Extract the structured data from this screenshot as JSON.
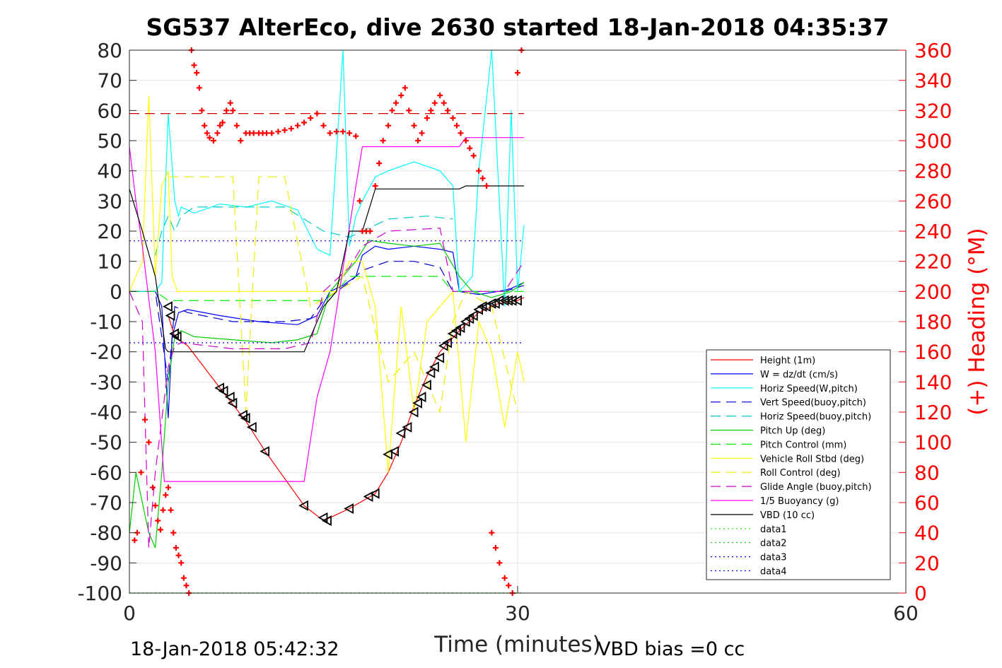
{
  "chart_data": {
    "type": "line",
    "title": "SG537 AlterEco, dive 2630 started 18-Jan-2018 04:35:37",
    "xlabel": "Time (minutes)",
    "ylabel_right": "(+) Heading (°M)",
    "xlim": [
      0,
      60
    ],
    "ylim": [
      -100,
      80
    ],
    "ylim_right": [
      0,
      360
    ],
    "x_ticks": [
      "0",
      "30",
      "60"
    ],
    "y_ticks": [
      "80",
      "70",
      "60",
      "50",
      "40",
      "30",
      "20",
      "10",
      "0",
      "-10",
      "-20",
      "-30",
      "-40",
      "-50",
      "-60",
      "-70",
      "-80",
      "-90",
      "-100"
    ],
    "y_right_ticks": [
      "360",
      "340",
      "320",
      "300",
      "280",
      "260",
      "240",
      "220",
      "200",
      "180",
      "160",
      "140",
      "120",
      "100",
      "80",
      "60",
      "40",
      "20",
      "0"
    ],
    "grid": true,
    "legend_position": "bottom-right",
    "footer_left": "18-Jan-2018 05:42:32",
    "footer_right": "VBD bias =0 cc",
    "series": [
      {
        "name": "Height (1m)",
        "color": "#ff0000",
        "style": "solid",
        "x": [
          3.0,
          3.5,
          4.5,
          7.0,
          9.0,
          10.5,
          13.5,
          15.0,
          15.5,
          17.0,
          19.0,
          20.0,
          21.0,
          22.0,
          23.0,
          24.0,
          25.5,
          27.0,
          28.5,
          30.0,
          30.5
        ],
        "y": [
          -8,
          -15,
          -18,
          -32,
          -43,
          -53,
          -71,
          -76,
          -75,
          -72,
          -67,
          -60,
          -50,
          -38,
          -28,
          -20,
          -13,
          -7,
          -4,
          -3,
          -2
        ]
      },
      {
        "name": "W = dz/dt (cm/s)",
        "color": "#0000ff",
        "style": "solid",
        "x": [
          0,
          2.0,
          2.5,
          3.0,
          3.3,
          3.8,
          4.5,
          7.0,
          10.0,
          13.0,
          14.5,
          15.5,
          16.5,
          17.5,
          18.0,
          19.0,
          20.0,
          22.0,
          24.0,
          25.0,
          25.5,
          27.0,
          28.5,
          29.5,
          30.5
        ],
        "y": [
          0,
          0,
          -5,
          -42,
          -15,
          -7,
          -6,
          -8,
          -10,
          -11,
          -8,
          0,
          2,
          5,
          12,
          15,
          14,
          15,
          14,
          13,
          0,
          -1,
          0,
          1,
          3
        ]
      },
      {
        "name": "Horiz Speed(W,pitch)",
        "color": "#00ffff",
        "style": "solid",
        "x": [
          0,
          2.0,
          2.5,
          3.0,
          3.5,
          3.8,
          4.0,
          5.0,
          7.0,
          9.0,
          11.0,
          13.0,
          14.5,
          15.5,
          16.5,
          17.0,
          17.5,
          18.0,
          19.0,
          20.0,
          22.0,
          24.0,
          25.0,
          25.5,
          26.5,
          27.0,
          28.0,
          29.0,
          29.5,
          30.0,
          30.5
        ],
        "y": [
          0,
          0,
          3,
          59,
          30,
          25,
          28,
          26,
          29,
          28,
          30,
          27,
          14,
          12,
          80,
          15,
          25,
          30,
          38,
          40,
          43,
          40,
          35,
          0,
          5,
          40,
          80,
          -5,
          60,
          0,
          22
        ]
      },
      {
        "name": "Vert Speed(buoy,pitch)",
        "color": "#0000cc",
        "style": "dashed",
        "x": [
          0,
          2.0,
          3.0,
          3.5,
          4.5,
          8.0,
          12.0,
          14.0,
          15.0,
          16.0,
          17.0,
          18.0,
          20.0,
          22.0,
          24.0,
          25.0,
          27.0,
          29.0,
          30.5
        ],
        "y": [
          0,
          0,
          -30,
          -5,
          -7,
          -10,
          -10,
          -9,
          -3,
          0,
          3,
          7,
          10,
          10,
          8,
          0,
          0,
          0,
          2
        ]
      },
      {
        "name": "Horiz Speed(buoy,pitch)",
        "color": "#00cccc",
        "style": "dashed",
        "x": [
          2.0,
          2.5,
          3.0,
          3.5,
          4.0,
          5.0,
          8.0,
          12.0,
          15.0,
          17.0,
          20.0,
          23.0,
          25.0
        ],
        "y": [
          12,
          20,
          25,
          20,
          25,
          28,
          28,
          28,
          20,
          18,
          24,
          25,
          24
        ]
      },
      {
        "name": "Pitch Up (deg)",
        "color": "#00cc00",
        "style": "solid",
        "x": [
          0,
          0.5,
          1.0,
          1.5,
          2.0,
          2.5,
          3.0,
          3.5,
          4.0,
          5.0,
          8.0,
          11.0,
          13.0,
          14.5,
          15.5,
          16.5,
          17.5,
          18.5,
          20.0,
          22.0,
          24.0,
          25.5,
          26.5,
          28.0,
          29.5,
          30.5
        ],
        "y": [
          -80,
          -60,
          -70,
          -80,
          -85,
          -60,
          -30,
          -15,
          -13,
          -15,
          -16,
          -17,
          -16,
          -14,
          0,
          5,
          10,
          17,
          16,
          15,
          16,
          5,
          0,
          -2,
          0,
          3
        ]
      },
      {
        "name": "Pitch Control (mm)",
        "color": "#00ee00",
        "style": "dashed",
        "x": [
          0,
          2.0,
          3.0,
          4.0,
          8.0,
          12.0,
          14.0,
          15.0,
          16.0,
          17.0,
          20.0,
          24.0,
          25.0,
          27.0,
          30.5
        ],
        "y": [
          0,
          0,
          -3,
          -3,
          -3,
          -3,
          -3,
          -3,
          0,
          5,
          5,
          5,
          0,
          0,
          0
        ]
      },
      {
        "name": "Vehicle Roll Stbd (deg)",
        "color": "#ffff00",
        "style": "solid",
        "x": [
          0,
          1.0,
          1.5,
          2.0,
          2.5,
          3.0,
          3.3,
          3.7,
          4.0,
          5.0,
          6.0,
          7.0,
          8.0,
          9.0,
          10.0,
          11.0,
          12.0,
          13.0,
          14.5,
          16.0,
          17.0,
          18.0,
          19.0,
          20.0,
          21.0,
          22.0,
          23.0,
          24.0,
          25.0,
          26.0,
          27.0,
          28.0,
          29.0,
          30.0,
          30.5
        ],
        "y": [
          0,
          10,
          65,
          5,
          35,
          40,
          5,
          0,
          0,
          0,
          0,
          0,
          0,
          0,
          0,
          0,
          0,
          0,
          0,
          0,
          10,
          10,
          -5,
          -60,
          -5,
          -40,
          -10,
          -5,
          0,
          -50,
          -10,
          -20,
          -45,
          -20,
          -30
        ]
      },
      {
        "name": "Roll Control (deg)",
        "color": "#eeee00",
        "style": "dashed",
        "x": [
          3.0,
          4.0,
          6.0,
          8.0,
          9.0,
          10.0,
          12.0,
          14.0,
          16.0,
          18.0,
          20.0,
          22.0,
          24.0,
          25.0,
          26.0,
          28.0,
          30.0
        ],
        "y": [
          38,
          38,
          38,
          38,
          -40,
          38,
          38,
          -5,
          0,
          5,
          -30,
          -20,
          -40,
          -10,
          0,
          -5,
          -40
        ]
      },
      {
        "name": "Glide Angle (buoy,pitch)",
        "color": "#cc00cc",
        "style": "dashed",
        "x": [
          0,
          1.0,
          1.5,
          2.0,
          3.0,
          3.5,
          4.0,
          6.0,
          8.0,
          12.0,
          14.0,
          15.0,
          17.0,
          18.0,
          20.0,
          24.0,
          25.0,
          27.0,
          29.0,
          30.5
        ],
        "y": [
          0,
          -10,
          -85,
          -60,
          -25,
          -18,
          -17,
          -18,
          -19,
          -19,
          -17,
          0,
          8,
          15,
          20,
          21,
          0,
          0,
          0,
          10
        ]
      },
      {
        "name": "1/5 Buoyancy (g)",
        "color": "#ff00ff",
        "style": "solid",
        "x": [
          0,
          0.5,
          1.0,
          2.0,
          2.7,
          3.0,
          8.0,
          13.5,
          14.5,
          15.5,
          17.5,
          18.0,
          25.5,
          26.0,
          30.0,
          30.5
        ],
        "y": [
          48,
          30,
          15,
          -20,
          -63,
          -63,
          -63,
          -63,
          -35,
          -20,
          35,
          48,
          48,
          51,
          51,
          51
        ]
      },
      {
        "name": "VBD (10 cc)",
        "color": "#000000",
        "style": "solid",
        "x": [
          0,
          1.0,
          2.0,
          2.8,
          3.0,
          13.5,
          15.0,
          16.0,
          17.0,
          18.0,
          19.0,
          25.5,
          26.0,
          30.5
        ],
        "y": [
          34,
          20,
          5,
          -19,
          -20,
          -20,
          -5,
          0,
          20,
          20,
          34,
          34,
          35,
          35
        ]
      },
      {
        "name": "data1",
        "color": "#00ee00",
        "style": "dotted",
        "x": [
          0,
          30.5
        ],
        "y": [
          -100,
          -100
        ]
      },
      {
        "name": "data2",
        "color": "#00cc00",
        "style": "dotted",
        "x": [
          0,
          30.5
        ],
        "y": [
          -100,
          -100
        ]
      },
      {
        "name": "data3",
        "color": "#0000ff",
        "style": "dotted",
        "x": [
          0,
          30.5
        ],
        "y": [
          16.8,
          16.8
        ]
      },
      {
        "name": "data4",
        "color": "#0000ff",
        "style": "dotted",
        "x": [
          0,
          30.5
        ],
        "y": [
          -17,
          -17
        ]
      }
    ],
    "heading_reference": {
      "color": "#cc0000",
      "style": "dashed",
      "x": [
        0,
        30.5
      ],
      "heading": 318
    },
    "heading_points": {
      "color": "#ff0000",
      "marker": "+",
      "x": [
        0.4,
        0.6,
        0.9,
        1.2,
        1.5,
        1.8,
        2.0,
        2.2,
        2.4,
        2.6,
        2.8,
        3.0,
        3.2,
        3.4,
        3.6,
        3.8,
        4.0,
        4.2,
        4.4,
        4.6,
        4.8,
        5.0,
        5.2,
        5.4,
        5.6,
        5.8,
        6.0,
        6.2,
        6.5,
        6.8,
        7.0,
        7.2,
        7.5,
        7.8,
        8.0,
        8.3,
        8.6,
        9.0,
        9.3,
        9.6,
        10.0,
        10.3,
        10.6,
        11.0,
        11.5,
        12.0,
        12.5,
        13.0,
        13.5,
        14.0,
        14.5,
        15.0,
        15.5,
        16.0,
        16.5,
        17.0,
        17.5,
        17.8,
        18.0,
        18.3,
        18.6,
        19.0,
        19.3,
        19.6,
        20.0,
        20.3,
        20.6,
        21.0,
        21.3,
        21.6,
        22.0,
        22.3,
        22.6,
        23.0,
        23.3,
        23.6,
        24.0,
        24.3,
        24.6,
        25.0,
        25.3,
        25.6,
        26.0,
        26.3,
        26.6,
        27.0,
        27.3,
        27.6,
        28.0,
        28.3,
        28.6,
        29.0,
        29.3,
        29.6,
        30.0,
        30.3
      ],
      "heading": [
        35,
        40,
        80,
        115,
        100,
        70,
        58,
        48,
        42,
        55,
        65,
        70,
        55,
        40,
        30,
        25,
        20,
        10,
        5,
        0,
        360,
        350,
        345,
        335,
        320,
        310,
        305,
        302,
        300,
        305,
        310,
        312,
        320,
        325,
        320,
        310,
        300,
        305,
        305,
        305,
        305,
        305,
        305,
        305,
        306,
        307,
        308,
        310,
        312,
        315,
        318,
        310,
        305,
        306,
        306,
        305,
        303,
        260,
        240,
        240,
        240,
        270,
        285,
        300,
        310,
        320,
        325,
        330,
        335,
        320,
        310,
        300,
        305,
        315,
        320,
        325,
        330,
        325,
        320,
        315,
        310,
        305,
        300,
        295,
        290,
        280,
        275,
        270,
        40,
        30,
        20,
        10,
        5,
        0,
        345,
        360
      ]
    },
    "depth_markers": {
      "color": "#000000",
      "marker": "triangle",
      "x": [
        3.0,
        3.2,
        3.5,
        3.7,
        7.0,
        7.3,
        7.8,
        8.0,
        8.8,
        9.0,
        9.5,
        10.5,
        13.5,
        15.0,
        15.3,
        17.0,
        18.5,
        19.0,
        20.0,
        20.5,
        21.0,
        21.5,
        22.0,
        22.3,
        22.6,
        23.0,
        23.3,
        23.6,
        24.0,
        24.3,
        24.6,
        25.0,
        25.3,
        25.6,
        26.0,
        26.3,
        26.6,
        27.0,
        27.3,
        27.6,
        28.0,
        28.3,
        28.6,
        29.0,
        29.3,
        29.6,
        30.0
      ],
      "y": [
        -5,
        -8,
        -14,
        -15,
        -32,
        -33,
        -35,
        -37,
        -41,
        -42,
        -45,
        -53,
        -71,
        -75,
        -76,
        -72,
        -68,
        -67,
        -54,
        -53,
        -47,
        -45,
        -40,
        -37,
        -35,
        -31,
        -27,
        -25,
        -22,
        -18,
        -17,
        -14,
        -13,
        -12,
        -10,
        -9,
        -8,
        -6,
        -5,
        -5,
        -4,
        -4,
        -3,
        -3,
        -3,
        -3,
        -3
      ]
    }
  }
}
